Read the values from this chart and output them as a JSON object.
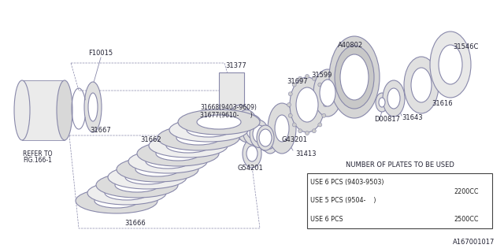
{
  "bg_color": "#FFFFFF",
  "line_color": "#8888AA",
  "text_color": "#222233",
  "diagram_id": "A167001017",
  "figsize": [
    6.4,
    3.2
  ],
  "dpi": 100,
  "table": {
    "title": "NUMBER OF PLATES TO BE USED",
    "rows": [
      [
        "USE 6 PCS (9403-9503)",
        "2200CC"
      ],
      [
        "USE 5 PCS (9504-    )",
        "2200CC"
      ],
      [
        "USE 6 PCS",
        "2500CC"
      ]
    ]
  }
}
